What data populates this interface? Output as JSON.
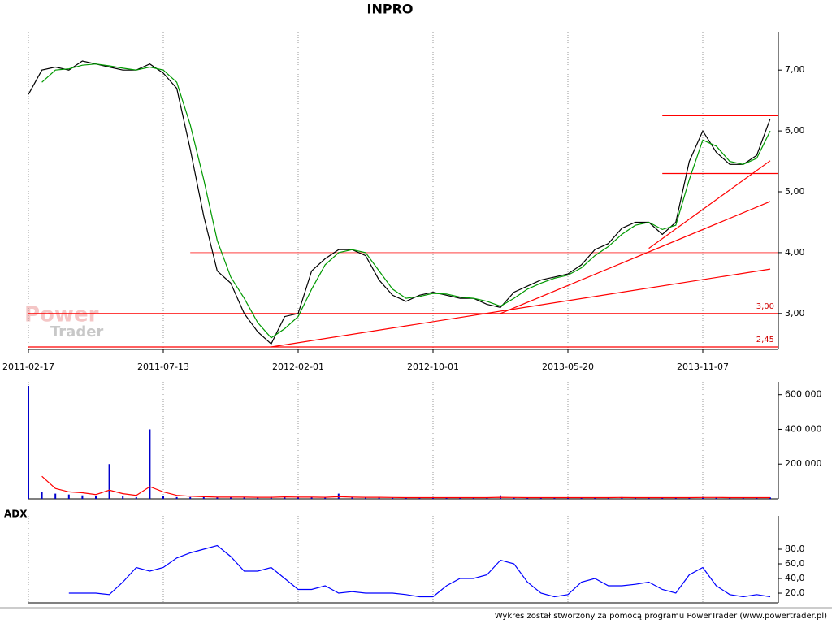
{
  "chart_data": [
    {
      "type": "line",
      "title": "INPRO",
      "categories": [
        "2011-02-17",
        null,
        null,
        null,
        null,
        null,
        null,
        null,
        null,
        null,
        "2011-07-13",
        null,
        null,
        null,
        null,
        null,
        null,
        null,
        null,
        null,
        "2012-02-01",
        null,
        null,
        null,
        null,
        null,
        null,
        null,
        null,
        null,
        "2012-10-01",
        null,
        null,
        null,
        null,
        null,
        null,
        null,
        null,
        null,
        "2013-05-20",
        null,
        null,
        null,
        null,
        null,
        null,
        null,
        null,
        null,
        "2013-11-07",
        null,
        null,
        null,
        null,
        null
      ],
      "series": [
        {
          "color": "#000000",
          "values": [
            6.6,
            7.0,
            7.05,
            7.0,
            7.15,
            7.1,
            7.05,
            7.0,
            7.0,
            7.1,
            6.95,
            6.7,
            5.7,
            4.6,
            3.7,
            3.5,
            3.0,
            2.7,
            2.5,
            2.95,
            3.0,
            3.7,
            3.9,
            4.05,
            4.05,
            3.95,
            3.55,
            3.3,
            3.2,
            3.3,
            3.35,
            3.3,
            3.25,
            3.25,
            3.15,
            3.1,
            3.35,
            3.45,
            3.55,
            3.6,
            3.65,
            3.8,
            4.05,
            4.15,
            4.4,
            4.5,
            4.5,
            4.3,
            4.5,
            5.5,
            6.0,
            5.65,
            5.45,
            5.45,
            5.6,
            6.2
          ]
        },
        {
          "color": "#009900",
          "values": [
            null,
            6.8,
            7.0,
            7.02,
            7.08,
            7.1,
            7.07,
            7.03,
            7.0,
            7.05,
            7.0,
            6.8,
            6.1,
            5.2,
            4.2,
            3.6,
            3.25,
            2.85,
            2.6,
            2.75,
            2.95,
            3.4,
            3.8,
            4.0,
            4.05,
            4.0,
            3.7,
            3.4,
            3.25,
            3.28,
            3.33,
            3.32,
            3.27,
            3.25,
            3.2,
            3.12,
            3.25,
            3.4,
            3.5,
            3.58,
            3.63,
            3.75,
            3.95,
            4.1,
            4.3,
            4.45,
            4.5,
            4.38,
            4.45,
            5.2,
            5.85,
            5.75,
            5.5,
            5.45,
            5.55,
            6.0
          ]
        }
      ],
      "ylim": [
        2.41,
        7.55
      ],
      "yticks": [
        {
          "value": 3,
          "label": "3,00"
        },
        {
          "value": 4,
          "label": "4,00"
        },
        {
          "value": 5,
          "label": "5,00"
        },
        {
          "value": 6,
          "label": "6,00"
        },
        {
          "value": 7,
          "label": "7,00"
        }
      ],
      "hlines": [
        {
          "value": 3,
          "label": "3,00",
          "from": 0,
          "color": "#ff0000"
        },
        {
          "value": 2.45,
          "label": "2,45",
          "from": 0,
          "color": "#ff0000"
        },
        {
          "value": 4,
          "from": 12,
          "color": "#ff6666"
        },
        {
          "value": 6.25,
          "from": 47,
          "color": "#ff0000"
        },
        {
          "value": 5.3,
          "from": 47,
          "color": "#ff0000"
        }
      ],
      "trendlines": [
        {
          "x": [
            18,
            55
          ],
          "values": [
            2.45,
            3.73
          ],
          "color": "#ff0000"
        },
        {
          "x": [
            35,
            55
          ],
          "values": [
            3.0,
            4.84
          ],
          "color": "#ff0000"
        },
        {
          "x": [
            46,
            55
          ],
          "values": [
            4.07,
            5.51
          ],
          "color": "#ff0000"
        }
      ],
      "watermark": [
        "Power",
        "Trader"
      ],
      "grid": true
    },
    {
      "type": "bar",
      "series": [
        {
          "color": "#0000cc",
          "values": [
            650000,
            40000,
            30000,
            25000,
            20000,
            15000,
            200000,
            15000,
            10000,
            400000,
            15000,
            10000,
            10000,
            10000,
            10000,
            8000,
            10000,
            8000,
            12000,
            15000,
            10000,
            10000,
            8000,
            30000,
            8000,
            8000,
            10000,
            6000,
            6000,
            6000,
            6000,
            6000,
            6000,
            6000,
            6000,
            20000,
            6000,
            6000,
            6000,
            6000,
            6000,
            8000,
            6000,
            6000,
            10000,
            6000,
            6000,
            6000,
            6000,
            8000,
            10000,
            8000,
            6000,
            6000,
            6000,
            8000
          ]
        },
        {
          "color": "#ff0000",
          "type": "line",
          "values": [
            null,
            130000,
            60000,
            40000,
            35000,
            25000,
            50000,
            30000,
            20000,
            70000,
            40000,
            20000,
            15000,
            12000,
            10000,
            10000,
            10000,
            9000,
            9000,
            11000,
            10000,
            10000,
            9000,
            12000,
            10000,
            9000,
            9000,
            8000,
            7000,
            7000,
            7000,
            7000,
            7000,
            7000,
            7000,
            9000,
            8000,
            7000,
            7000,
            7000,
            7000,
            7000,
            7000,
            7000,
            8000,
            7000,
            7000,
            7000,
            7000,
            7000,
            8000,
            8000,
            7000,
            7000,
            7000,
            7000
          ]
        }
      ],
      "ylim": [
        0,
        650000
      ],
      "yticks": [
        {
          "value": 200000,
          "label": "200 000"
        },
        {
          "value": 400000,
          "label": "400 000"
        },
        {
          "value": 600000,
          "label": "600 000"
        }
      ],
      "grid": true
    },
    {
      "type": "line",
      "title": "ADX",
      "series": [
        {
          "color": "#0000ff",
          "values": [
            null,
            null,
            null,
            20,
            20,
            20,
            18,
            35,
            55,
            50,
            55,
            68,
            75,
            80,
            85,
            70,
            50,
            50,
            55,
            40,
            25,
            25,
            30,
            20,
            22,
            20,
            20,
            20,
            18,
            15,
            15,
            30,
            40,
            40,
            45,
            65,
            60,
            35,
            20,
            15,
            18,
            35,
            40,
            30,
            30,
            32,
            35,
            25,
            20,
            45,
            55,
            30,
            18,
            15,
            18,
            15
          ]
        }
      ],
      "ylim": [
        6.7,
        120
      ],
      "yticks": [
        {
          "value": 20,
          "label": "20,0"
        },
        {
          "value": 40,
          "label": "40,0"
        },
        {
          "value": 60,
          "label": "60,0"
        },
        {
          "value": 80,
          "label": "80,0"
        }
      ],
      "grid": true
    }
  ],
  "footer": "Wykres został stworzony za pomocą programu PowerTrader (www.powertrader.pl)"
}
